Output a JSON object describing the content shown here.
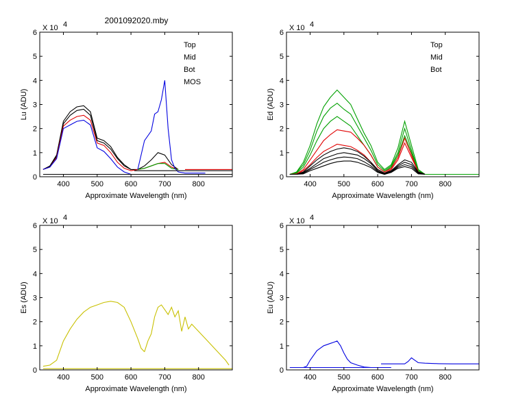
{
  "title": "2001092020.mby",
  "colors": {
    "top": "#000000",
    "mid": "#e00000",
    "bot": "#00a000",
    "mos": "#0000e0",
    "es": "#c8c000"
  },
  "chart_data": [
    {
      "id": "lu",
      "type": "line",
      "ylabel": "Lu (ADU)",
      "xlabel": "Approximate Wavelength (nm)",
      "exponent": "X 10",
      "exponent_power": "4",
      "xlim": [
        330,
        900
      ],
      "ylim": [
        0,
        6
      ],
      "xticks": [
        400,
        500,
        600,
        700,
        800
      ],
      "yticks": [
        0,
        1,
        2,
        3,
        4,
        5,
        6
      ],
      "legend": [
        "Top",
        "Mid",
        "Bot",
        "MOS"
      ],
      "legend_colors": [
        "#000000",
        "#e00000",
        "#00a000",
        "#0000e0"
      ],
      "series": [
        {
          "color": "#000000",
          "x": [
            340,
            360,
            380,
            400,
            420,
            440,
            460,
            480,
            500,
            520,
            540,
            560,
            580,
            600,
            620,
            640,
            660,
            680,
            700,
            720,
            740
          ],
          "y": [
            0.3,
            0.45,
            0.9,
            2.3,
            2.7,
            2.9,
            2.95,
            2.7,
            1.6,
            1.5,
            1.25,
            0.8,
            0.5,
            0.3,
            0.3,
            0.45,
            0.7,
            1.0,
            0.9,
            0.5,
            0.3
          ]
        },
        {
          "color": "#000000",
          "x": [
            340,
            360,
            380,
            400,
            420,
            440,
            460,
            480,
            500,
            520,
            540,
            560,
            580,
            600
          ],
          "y": [
            0.3,
            0.42,
            0.85,
            2.2,
            2.55,
            2.75,
            2.8,
            2.55,
            1.5,
            1.4,
            1.15,
            0.75,
            0.45,
            0.3
          ]
        },
        {
          "color": "#e00000",
          "x": [
            340,
            360,
            380,
            400,
            420,
            440,
            460,
            480,
            500,
            520,
            540,
            560,
            580,
            600,
            620,
            640,
            660,
            680,
            700,
            720,
            740
          ],
          "y": [
            0.3,
            0.4,
            0.8,
            2.1,
            2.35,
            2.5,
            2.55,
            2.35,
            1.4,
            1.3,
            1.0,
            0.6,
            0.35,
            0.25,
            0.3,
            0.35,
            0.45,
            0.55,
            0.6,
            0.4,
            0.3
          ]
        },
        {
          "color": "#00a000",
          "x": [
            620,
            640,
            660,
            680,
            700,
            720,
            740
          ],
          "y": [
            0.3,
            0.35,
            0.45,
            0.55,
            0.55,
            0.35,
            0.3
          ]
        },
        {
          "color": "#0000e0",
          "x": [
            340,
            360,
            380,
            400,
            420,
            440,
            460,
            480,
            500,
            520,
            540,
            560,
            580,
            600
          ],
          "y": [
            0.3,
            0.4,
            0.75,
            2.0,
            2.15,
            2.3,
            2.35,
            2.15,
            1.2,
            1.05,
            0.75,
            0.4,
            0.2,
            0.1
          ]
        },
        {
          "color": "#0000e0",
          "x": [
            620,
            640,
            660,
            670,
            680,
            690,
            700,
            710,
            720,
            730,
            740,
            760,
            780,
            800,
            820
          ],
          "y": [
            0.3,
            1.5,
            1.9,
            2.6,
            2.7,
            3.2,
            4.0,
            2.0,
            0.7,
            0.35,
            0.2,
            0.15,
            0.15,
            0.15,
            0.15
          ]
        },
        {
          "color": "#000000",
          "x": [
            340,
            900
          ],
          "y": [
            0.1,
            0.1
          ]
        },
        {
          "color": "#000000",
          "x": [
            610,
            900
          ],
          "y": [
            0.25,
            0.25
          ]
        },
        {
          "color": "#e00000",
          "x": [
            760,
            900
          ],
          "y": [
            0.3,
            0.3
          ]
        }
      ]
    },
    {
      "id": "ed",
      "type": "line",
      "ylabel": "Ed  (ADU)",
      "xlabel": "Approximate Wavelength (nm)",
      "exponent": "X 10",
      "exponent_power": "4",
      "xlim": [
        330,
        900
      ],
      "ylim": [
        0,
        6
      ],
      "xticks": [
        400,
        500,
        600,
        700,
        800
      ],
      "yticks": [
        0,
        1,
        2,
        3,
        4,
        5,
        6
      ],
      "legend": [
        "Top",
        "Mid",
        "Bot"
      ],
      "legend_colors": [
        "#000000",
        "#e00000",
        "#00a000"
      ],
      "series": [
        {
          "color": "#00a000",
          "x": [
            340,
            360,
            380,
            400,
            420,
            440,
            460,
            480,
            500,
            520,
            540,
            560,
            580,
            600,
            620,
            640,
            660,
            680,
            700,
            720,
            740
          ],
          "y": [
            0.1,
            0.2,
            0.6,
            1.3,
            2.2,
            2.9,
            3.3,
            3.6,
            3.3,
            3.0,
            2.4,
            1.8,
            1.3,
            0.6,
            0.3,
            0.5,
            1.2,
            2.3,
            1.3,
            0.3,
            0.1
          ]
        },
        {
          "color": "#00a000",
          "x": [
            340,
            360,
            380,
            400,
            420,
            440,
            460,
            480,
            500,
            520,
            540,
            560,
            580,
            600,
            620,
            640,
            660,
            680,
            700,
            720,
            740
          ],
          "y": [
            0.1,
            0.18,
            0.5,
            1.1,
            1.9,
            2.5,
            2.85,
            3.05,
            2.8,
            2.6,
            2.1,
            1.6,
            1.1,
            0.5,
            0.25,
            0.45,
            1.0,
            2.0,
            1.1,
            0.25,
            0.1
          ]
        },
        {
          "color": "#00a000",
          "x": [
            340,
            360,
            380,
            400,
            420,
            440,
            460,
            480,
            500,
            520,
            540,
            560,
            580,
            600,
            620,
            640,
            660,
            680,
            700,
            720,
            740
          ],
          "y": [
            0.1,
            0.15,
            0.4,
            0.9,
            1.5,
            2.0,
            2.3,
            2.5,
            2.3,
            2.1,
            1.7,
            1.3,
            0.9,
            0.4,
            0.2,
            0.4,
            0.9,
            1.7,
            1.0,
            0.2,
            0.1
          ]
        },
        {
          "color": "#e00000",
          "x": [
            340,
            360,
            380,
            400,
            420,
            440,
            460,
            480,
            500,
            520,
            540,
            560,
            580,
            600,
            620,
            640,
            660,
            680,
            700,
            720,
            740
          ],
          "y": [
            0.1,
            0.12,
            0.3,
            0.7,
            1.1,
            1.5,
            1.75,
            1.95,
            1.9,
            1.85,
            1.6,
            1.3,
            0.9,
            0.4,
            0.2,
            0.35,
            0.8,
            1.6,
            0.9,
            0.2,
            0.1
          ]
        },
        {
          "color": "#e00000",
          "x": [
            340,
            360,
            380,
            400,
            420,
            440,
            460,
            480,
            500,
            520,
            540,
            560,
            580,
            600,
            620,
            640,
            660,
            680,
            700,
            720,
            740
          ],
          "y": [
            0.1,
            0.1,
            0.25,
            0.5,
            0.8,
            1.05,
            1.2,
            1.35,
            1.3,
            1.25,
            1.1,
            0.9,
            0.6,
            0.3,
            0.15,
            0.3,
            0.7,
            1.4,
            0.8,
            0.2,
            0.1
          ]
        },
        {
          "color": "#000000",
          "x": [
            340,
            360,
            380,
            400,
            420,
            440,
            460,
            480,
            500,
            520,
            540,
            560,
            580,
            600,
            620,
            640,
            660,
            680,
            700,
            720,
            740
          ],
          "y": [
            0.1,
            0.1,
            0.2,
            0.45,
            0.7,
            0.9,
            1.05,
            1.15,
            1.2,
            1.15,
            1.05,
            0.85,
            0.6,
            0.3,
            0.15,
            0.25,
            0.5,
            0.7,
            0.6,
            0.2,
            0.1
          ]
        },
        {
          "color": "#000000",
          "x": [
            340,
            360,
            380,
            400,
            420,
            440,
            460,
            480,
            500,
            520,
            540,
            560,
            580,
            600,
            620,
            640,
            660,
            680,
            700,
            720,
            740
          ],
          "y": [
            0.1,
            0.1,
            0.18,
            0.35,
            0.55,
            0.75,
            0.85,
            0.95,
            1.0,
            0.95,
            0.9,
            0.75,
            0.55,
            0.25,
            0.12,
            0.22,
            0.45,
            0.6,
            0.5,
            0.18,
            0.1
          ]
        },
        {
          "color": "#000000",
          "x": [
            340,
            360,
            380,
            400,
            420,
            440,
            460,
            480,
            500,
            520,
            540,
            560,
            580,
            600,
            620,
            640,
            660,
            680,
            700,
            720,
            740
          ],
          "y": [
            0.1,
            0.1,
            0.15,
            0.3,
            0.45,
            0.6,
            0.7,
            0.78,
            0.82,
            0.8,
            0.75,
            0.62,
            0.45,
            0.22,
            0.1,
            0.2,
            0.4,
            0.5,
            0.42,
            0.15,
            0.1
          ]
        },
        {
          "color": "#000000",
          "x": [
            340,
            360,
            380,
            400,
            420,
            440,
            460,
            480,
            500,
            520,
            540,
            560,
            580,
            600,
            620,
            640,
            660,
            680,
            700,
            720,
            740
          ],
          "y": [
            0.1,
            0.1,
            0.12,
            0.25,
            0.35,
            0.45,
            0.55,
            0.62,
            0.65,
            0.65,
            0.6,
            0.5,
            0.38,
            0.18,
            0.1,
            0.18,
            0.35,
            0.42,
            0.35,
            0.12,
            0.1
          ]
        },
        {
          "color": "#00a000",
          "x": [
            740,
            900
          ],
          "y": [
            0.1,
            0.1
          ]
        }
      ]
    },
    {
      "id": "es",
      "type": "line",
      "ylabel": "Es  (ADU)",
      "xlabel": "Approximate Wavelength (nm)",
      "exponent": "X 10",
      "exponent_power": "4",
      "xlim": [
        330,
        900
      ],
      "ylim": [
        0,
        6
      ],
      "xticks": [
        400,
        500,
        600,
        700,
        800
      ],
      "yticks": [
        0,
        1,
        2,
        3,
        4,
        5,
        6
      ],
      "legend": [],
      "legend_colors": [],
      "series": [
        {
          "color": "#c8c000",
          "x": [
            340,
            360,
            380,
            400,
            420,
            440,
            460,
            480,
            500,
            520,
            540,
            560,
            580,
            600,
            620,
            630,
            640
          ],
          "y": [
            0.15,
            0.2,
            0.4,
            1.2,
            1.7,
            2.1,
            2.4,
            2.6,
            2.7,
            2.8,
            2.85,
            2.8,
            2.6,
            2.0,
            1.3,
            0.9,
            0.75
          ]
        },
        {
          "color": "#c8c000",
          "x": [
            640,
            650,
            660,
            670,
            680,
            690,
            700,
            710,
            720,
            730,
            740,
            750,
            760,
            770,
            780,
            800,
            820,
            840,
            860,
            880,
            890
          ],
          "y": [
            0.75,
            1.2,
            1.5,
            2.2,
            2.6,
            2.7,
            2.5,
            2.3,
            2.6,
            2.2,
            2.45,
            1.6,
            2.2,
            1.7,
            1.9,
            1.6,
            1.3,
            1.0,
            0.7,
            0.4,
            0.2
          ]
        },
        {
          "color": "#c8c000",
          "x": [
            340,
            900
          ],
          "y": [
            0.05,
            0.05
          ]
        }
      ]
    },
    {
      "id": "eu",
      "type": "line",
      "ylabel": "Eu  (ADU)",
      "xlabel": "Approximate Wavelength (nm)",
      "exponent": "X 10",
      "exponent_power": "4",
      "xlim": [
        330,
        900
      ],
      "ylim": [
        0,
        6
      ],
      "xticks": [
        400,
        500,
        600,
        700,
        800
      ],
      "yticks": [
        0,
        1,
        2,
        3,
        4,
        5,
        6
      ],
      "legend": [],
      "legend_colors": [],
      "series": [
        {
          "color": "#0000e0",
          "x": [
            340,
            380,
            390,
            400,
            420,
            440,
            460,
            470,
            480,
            490,
            500,
            510,
            520,
            540,
            560,
            580,
            600
          ],
          "y": [
            0.1,
            0.1,
            0.15,
            0.4,
            0.8,
            1.0,
            1.1,
            1.15,
            1.2,
            1.0,
            0.7,
            0.45,
            0.3,
            0.2,
            0.12,
            0.1,
            0.1
          ]
        },
        {
          "color": "#0000e0",
          "x": [
            340,
            640
          ],
          "y": [
            0.1,
            0.1
          ]
        },
        {
          "color": "#0000e0",
          "x": [
            610,
            680,
            690,
            700,
            710,
            720,
            740,
            780,
            820,
            860,
            900
          ],
          "y": [
            0.25,
            0.25,
            0.35,
            0.5,
            0.4,
            0.3,
            0.28,
            0.26,
            0.25,
            0.25,
            0.25
          ]
        }
      ]
    }
  ]
}
